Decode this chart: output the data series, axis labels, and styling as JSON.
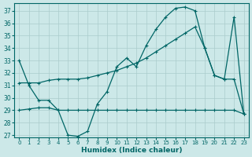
{
  "xlabel": "Humidex (Indice chaleur)",
  "bg_color": "#cce8e8",
  "grid_color": "#aacccc",
  "line_color": "#006666",
  "xlim": [
    -0.5,
    23.5
  ],
  "ylim": [
    26.8,
    37.6
  ],
  "yticks": [
    27,
    28,
    29,
    30,
    31,
    32,
    33,
    34,
    35,
    36,
    37
  ],
  "xticks": [
    0,
    1,
    2,
    3,
    4,
    5,
    6,
    7,
    8,
    9,
    10,
    11,
    12,
    13,
    14,
    15,
    16,
    17,
    18,
    19,
    20,
    21,
    22,
    23
  ],
  "line1_x": [
    0,
    1,
    2,
    3,
    4,
    5,
    6,
    7,
    8,
    9,
    10,
    11,
    12,
    13,
    14,
    15,
    16,
    17,
    18,
    19,
    20,
    21,
    22,
    23
  ],
  "line1_y": [
    33.0,
    31.0,
    29.8,
    29.8,
    29.0,
    27.0,
    26.9,
    27.3,
    29.5,
    30.5,
    32.5,
    33.2,
    32.5,
    34.2,
    35.5,
    36.5,
    37.2,
    37.3,
    37.0,
    34.0,
    31.8,
    31.5,
    31.5,
    28.7
  ],
  "line2_x": [
    0,
    1,
    2,
    3,
    4,
    5,
    6,
    7,
    8,
    9,
    10,
    11,
    12,
    13,
    14,
    15,
    16,
    17,
    18,
    19,
    20,
    21,
    22,
    23
  ],
  "line2_y": [
    29.0,
    29.1,
    29.2,
    29.2,
    29.0,
    29.0,
    29.0,
    29.0,
    29.0,
    29.0,
    29.0,
    29.0,
    29.0,
    29.0,
    29.0,
    29.0,
    29.0,
    29.0,
    29.0,
    29.0,
    29.0,
    29.0,
    29.0,
    28.7
  ],
  "line3_x": [
    0,
    1,
    2,
    3,
    4,
    5,
    6,
    7,
    8,
    9,
    10,
    11,
    12,
    13,
    14,
    15,
    16,
    17,
    18,
    19,
    20,
    21,
    22,
    23
  ],
  "line3_y": [
    31.2,
    31.2,
    31.2,
    31.4,
    31.5,
    31.5,
    31.5,
    31.6,
    31.8,
    32.0,
    32.2,
    32.5,
    32.8,
    33.2,
    33.7,
    34.2,
    34.7,
    35.2,
    35.7,
    34.0,
    31.8,
    31.5,
    36.5,
    28.7
  ]
}
